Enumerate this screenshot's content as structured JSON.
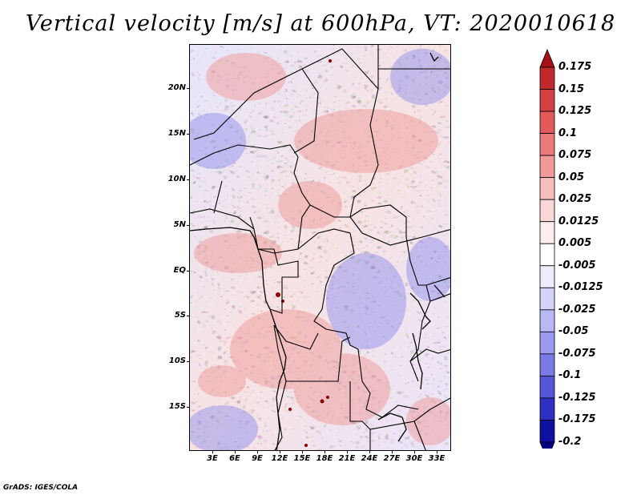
{
  "title": "Vertical velocity [m/s] at 600hPa, VT: 2020010618",
  "credit": "GrADS: IGES/COLA",
  "lat_labels": [
    "20N",
    "15N",
    "10N",
    "5N",
    "EQ",
    "5S",
    "10S",
    "15S"
  ],
  "lon_labels": [
    "3E",
    "6E",
    "9E",
    "12E",
    "15E",
    "18E",
    "21E",
    "24E",
    "27E",
    "30E",
    "33E"
  ],
  "colorbar": {
    "levels": [
      "0.175",
      "0.15",
      "0.125",
      "0.1",
      "0.075",
      "0.05",
      "0.025",
      "0.0125",
      "0.005",
      "-0.005",
      "-0.0125",
      "-0.025",
      "-0.05",
      "-0.075",
      "-0.1",
      "-0.125",
      "-0.175",
      "-0.2"
    ],
    "colors": [
      "#a50f15",
      "#c0282a",
      "#d64040",
      "#e25a5a",
      "#ec7a7a",
      "#f29a9a",
      "#f7bcbc",
      "#fbd8d8",
      "#fdeeee",
      "#ffffff",
      "#ececfd",
      "#d4d4fa",
      "#b8b8f5",
      "#9a9af0",
      "#7a7ae6",
      "#5555d8",
      "#2f2fc4",
      "#1010a0",
      "#000080"
    ]
  }
}
